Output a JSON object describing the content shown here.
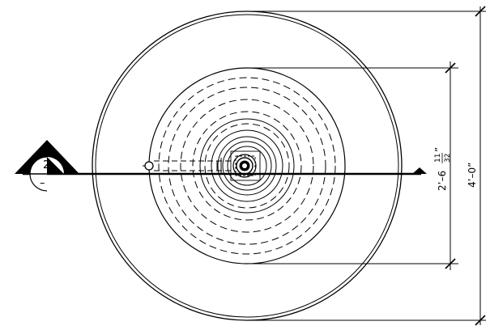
{
  "section_marker": {
    "number": "2",
    "sheet": "–"
  },
  "dimensions": {
    "outer_whole": "4’–0”",
    "inner_whole": "2’–6",
    "inner_frac_num": "11",
    "inner_frac_den": "32",
    "inner_inch_mark": "”"
  },
  "colors": {
    "line": "#000000",
    "background": "#ffffff"
  }
}
